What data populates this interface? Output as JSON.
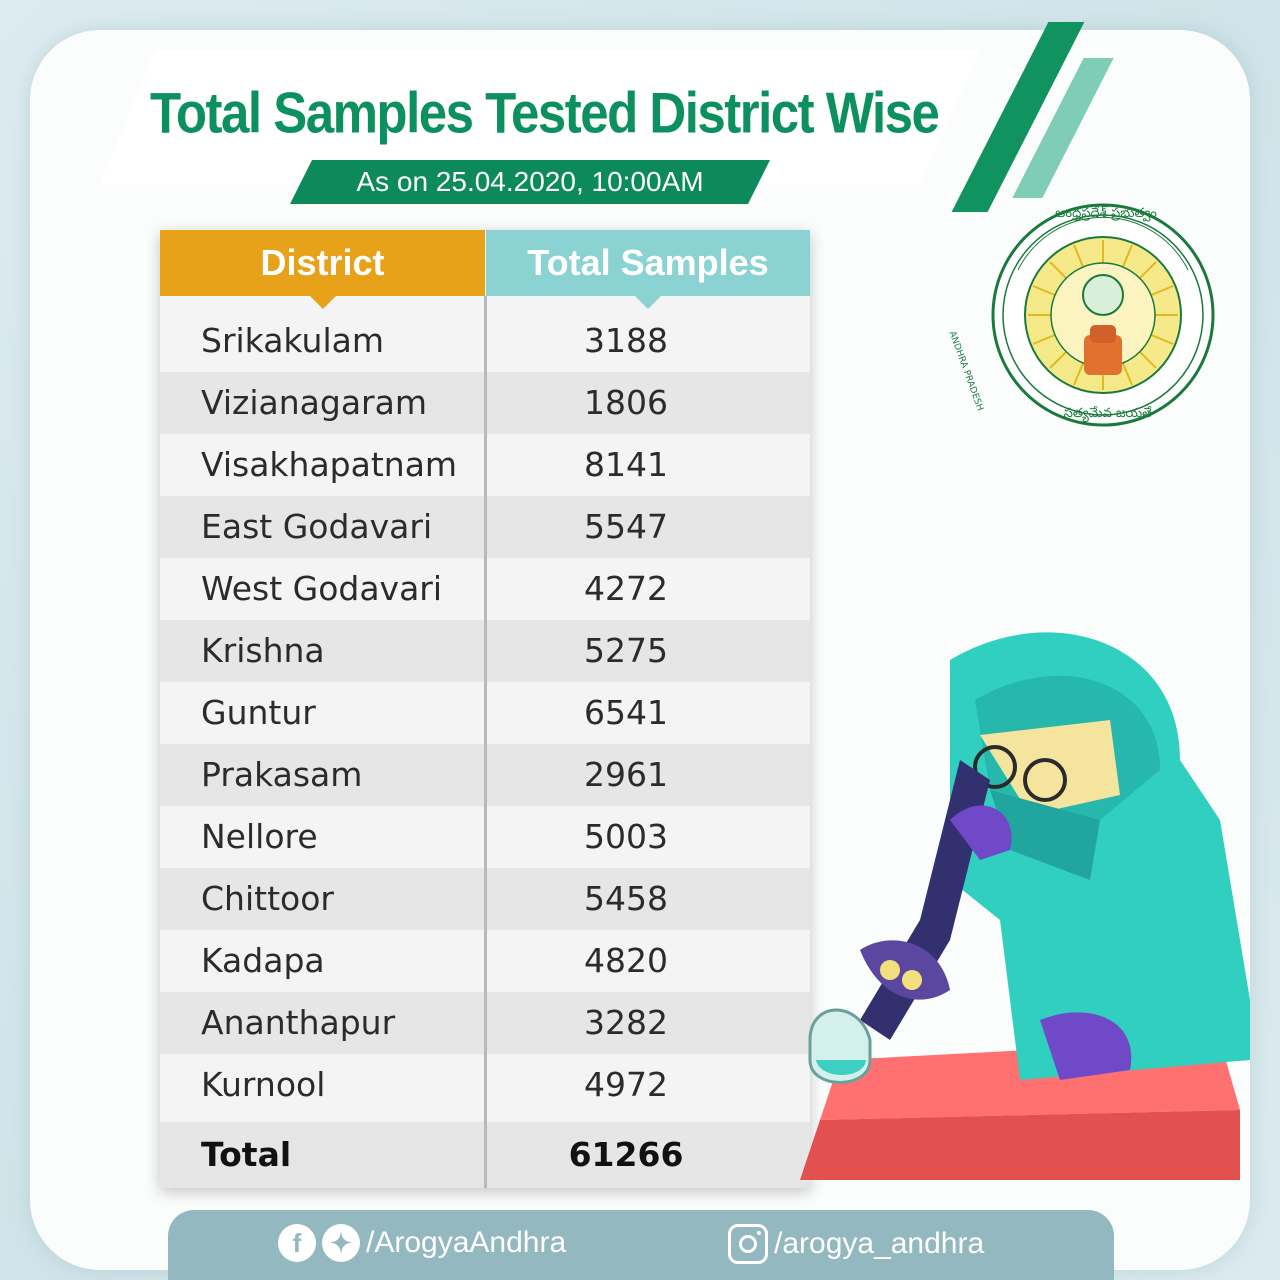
{
  "header": {
    "title": "Total Samples Tested District Wise",
    "subtitle": "As on 25.04.2020, 10:00AM"
  },
  "emblem": {
    "top_text": "ఆంధ్రప్రదేశ్ ప్రభుత్వం",
    "left_text": "ANDHRA PRADESH",
    "bottom_text": "సత్యమేవ జయతే"
  },
  "table": {
    "headers": [
      "District",
      "Total Samples"
    ],
    "rows": [
      {
        "district": "Srikakulam",
        "samples": "3188"
      },
      {
        "district": "Vizianagaram",
        "samples": "1806"
      },
      {
        "district": "Visakhapatnam",
        "samples": "8141"
      },
      {
        "district": "East Godavari",
        "samples": "5547"
      },
      {
        "district": "West Godavari",
        "samples": "4272"
      },
      {
        "district": "Krishna",
        "samples": "5275"
      },
      {
        "district": "Guntur",
        "samples": "6541"
      },
      {
        "district": "Prakasam",
        "samples": "2961"
      },
      {
        "district": "Nellore",
        "samples": "5003"
      },
      {
        "district": "Chittoor",
        "samples": "5458"
      },
      {
        "district": "Kadapa",
        "samples": "4820"
      },
      {
        "district": "Ananthapur",
        "samples": "3282"
      },
      {
        "district": "Kurnool",
        "samples": "4972"
      }
    ],
    "total": {
      "label": "Total",
      "value": "61266"
    }
  },
  "footer": {
    "handle_left": "/ArogyaAndhra",
    "handle_right": "/arogya_andhra",
    "icons": [
      "facebook-icon",
      "twitter-icon",
      "instagram-icon"
    ]
  },
  "colors": {
    "brand_green": "#0d9060",
    "header_orange": "#e8a219",
    "header_teal": "#8bd2d2",
    "footer_bg": "#94b8bf"
  }
}
